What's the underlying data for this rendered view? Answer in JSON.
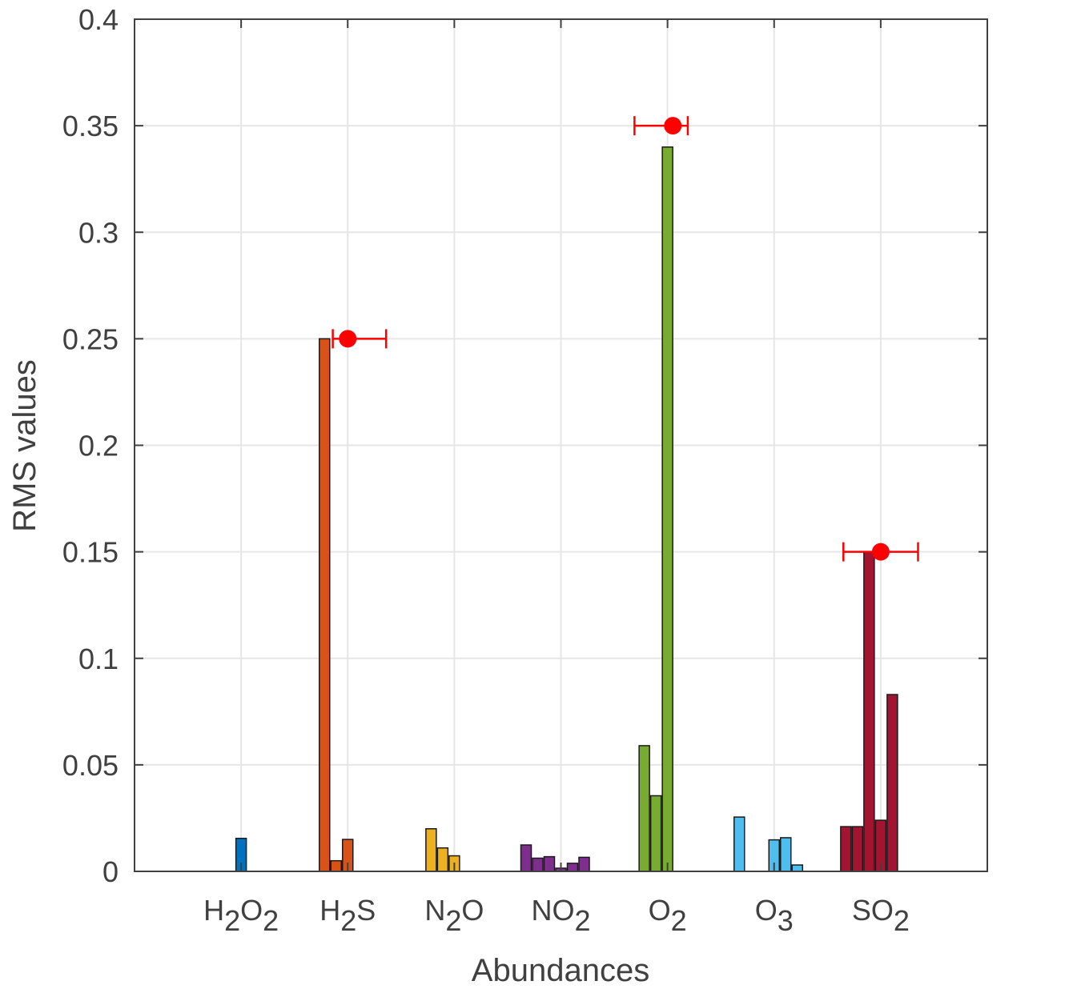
{
  "chart_data": {
    "type": "bar",
    "title": "",
    "xlabel": "Abundances",
    "ylabel": "RMS values",
    "ylim": [
      0,
      0.4
    ],
    "yticks": [
      0,
      0.05,
      0.1,
      0.15,
      0.2,
      0.25,
      0.3,
      0.35,
      0.4
    ],
    "ytick_labels": [
      "0",
      "0.05",
      "0.1",
      "0.15",
      "0.2",
      "0.25",
      "0.3",
      "0.35",
      "0.4"
    ],
    "grid": true,
    "legend": "none",
    "categories": [
      {
        "base": "H",
        "sub1": "2",
        "mid": "O",
        "sub2": "2",
        "tail": ""
      },
      {
        "base": "H",
        "sub1": "2",
        "mid": "S",
        "sub2": "",
        "tail": ""
      },
      {
        "base": "N",
        "sub1": "2",
        "mid": "O",
        "sub2": "",
        "tail": ""
      },
      {
        "base": "NO",
        "sub1": "2",
        "mid": "",
        "sub2": "",
        "tail": ""
      },
      {
        "base": "O",
        "sub1": "2",
        "mid": "",
        "sub2": "",
        "tail": ""
      },
      {
        "base": "O",
        "sub1": "3",
        "mid": "",
        "sub2": "",
        "tail": ""
      },
      {
        "base": "SO",
        "sub1": "2",
        "mid": "",
        "sub2": "",
        "tail": ""
      }
    ],
    "colors": [
      "#0072BD",
      "#D95319",
      "#EDB120",
      "#7E2F8E",
      "#77AC30",
      "#4DBEEE",
      "#A2142F"
    ],
    "values": [
      [
        0,
        0,
        0,
        0.0155,
        0,
        0,
        0
      ],
      [
        0,
        0.25,
        0.005,
        0.015,
        0,
        0,
        0
      ],
      [
        0,
        0.02,
        0.011,
        0.0073,
        0,
        0,
        0
      ],
      [
        0.0124,
        0.0062,
        0.0069,
        0.0015,
        0.0038,
        0.0066,
        0
      ],
      [
        0,
        0.059,
        0.0355,
        0.34,
        0,
        0,
        0
      ],
      [
        0.0255,
        0,
        0,
        0.0148,
        0.0158,
        0.003,
        0
      ],
      [
        0.021,
        0.021,
        0.15,
        0.024,
        0.083,
        0,
        0
      ]
    ],
    "markers": [
      {
        "category_index": 1,
        "y": 0.25,
        "x_offset": 0,
        "err_left": 0.14,
        "err_right": 0.36,
        "color": "#FF0000"
      },
      {
        "category_index": 4,
        "y": 0.35,
        "x_offset": 0.05,
        "err_left": 0.36,
        "err_right": 0.14,
        "color": "#FF0000"
      },
      {
        "category_index": 6,
        "y": 0.15,
        "x_offset": 0,
        "err_left": 0.35,
        "err_right": 0.35,
        "color": "#FF0000"
      }
    ]
  }
}
